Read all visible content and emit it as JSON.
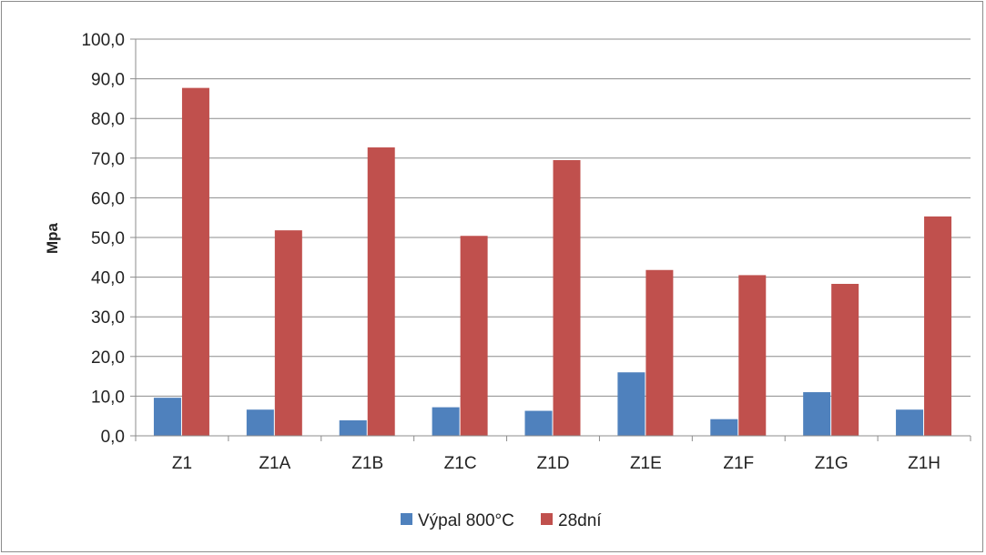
{
  "chart_data": {
    "type": "bar",
    "title": "",
    "xlabel": "",
    "ylabel": "Mpa",
    "ylim": [
      0,
      100
    ],
    "ytick_step": 10,
    "ytick_labels": [
      "0,0",
      "10,0",
      "20,0",
      "30,0",
      "40,0",
      "50,0",
      "60,0",
      "70,0",
      "80,0",
      "90,0",
      "100,0"
    ],
    "categories": [
      "Z1",
      "Z1A",
      "Z1B",
      "Z1C",
      "Z1D",
      "Z1E",
      "Z1F",
      "Z1G",
      "Z1H"
    ],
    "series": [
      {
        "name": "Výpal 800°C",
        "color": "#4f81bd",
        "values": [
          9.6,
          6.6,
          3.9,
          7.2,
          6.3,
          16.0,
          4.2,
          11.0,
          6.6
        ]
      },
      {
        "name": "28dní",
        "color": "#c0504d",
        "values": [
          87.7,
          51.8,
          72.7,
          50.4,
          69.5,
          41.8,
          40.5,
          38.3,
          55.3
        ]
      }
    ],
    "grid": true,
    "legend_position": "bottom"
  }
}
